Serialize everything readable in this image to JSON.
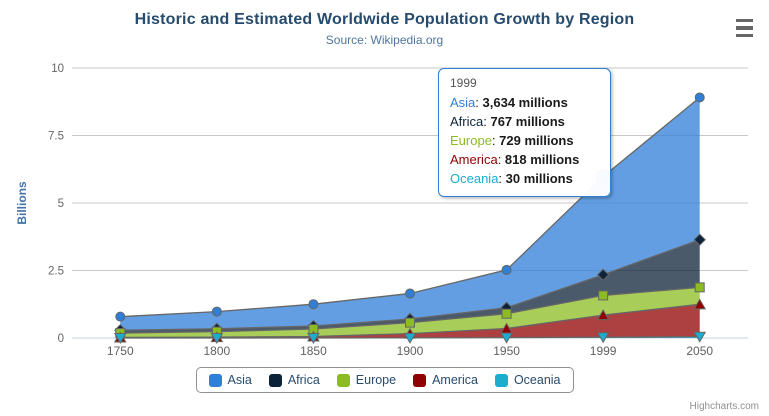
{
  "header": {
    "title": "Historic and Estimated Worldwide Population Growth by Region",
    "subtitle": "Source: Wikipedia.org"
  },
  "chart_data": {
    "type": "area",
    "stacking": "normal",
    "title": "Historic and Estimated Worldwide Population Growth by Region",
    "subtitle": "Source: Wikipedia.org",
    "categories": [
      "1750",
      "1800",
      "1850",
      "1900",
      "1950",
      "1999",
      "2050"
    ],
    "series": [
      {
        "name": "Asia",
        "color": "#2f7ed8",
        "marker": "circle",
        "values": [
          502,
          635,
          809,
          947,
          1402,
          3634,
          5268
        ]
      },
      {
        "name": "Africa",
        "color": "#0d233a",
        "marker": "diamond",
        "values": [
          106,
          107,
          111,
          133,
          221,
          767,
          1766
        ]
      },
      {
        "name": "Europe",
        "color": "#8bbc21",
        "marker": "square",
        "values": [
          163,
          203,
          276,
          408,
          547,
          729,
          628
        ]
      },
      {
        "name": "America",
        "color": "#910000",
        "marker": "triangle",
        "values": [
          18,
          31,
          54,
          156,
          339,
          818,
          1201
        ]
      },
      {
        "name": "Oceania",
        "color": "#1aadce",
        "marker": "triangle-down",
        "values": [
          2,
          2,
          2,
          6,
          13,
          30,
          46
        ]
      }
    ],
    "unit": "millions",
    "xlabel": "",
    "ylabel": "Billions",
    "yticks": [
      0,
      2.5,
      5,
      7.5,
      10
    ],
    "ylim": [
      0,
      10
    ],
    "grid": true,
    "legend_position": "bottom",
    "axis_line_color": "#C0D0E0",
    "grid_line_color": "#C9C9C9",
    "area_line_color": "#666666",
    "fill_opacity": 0.75
  },
  "tooltip": {
    "header": "1999",
    "hover": {
      "series": "Asia",
      "index": 5
    },
    "border_color": "#2f7ed8",
    "rows": [
      {
        "name": "Asia",
        "color": "#2f7ed8",
        "value": "3,634 millions"
      },
      {
        "name": "Africa",
        "color": "#0d233a",
        "value": "767 millions"
      },
      {
        "name": "Europe",
        "color": "#8bbc21",
        "value": "729 millions"
      },
      {
        "name": "America",
        "color": "#910000",
        "value": "818 millions"
      },
      {
        "name": "Oceania",
        "color": "#1aadce",
        "value": "30 millions"
      }
    ]
  },
  "credits": {
    "label": "Highcharts.com"
  }
}
